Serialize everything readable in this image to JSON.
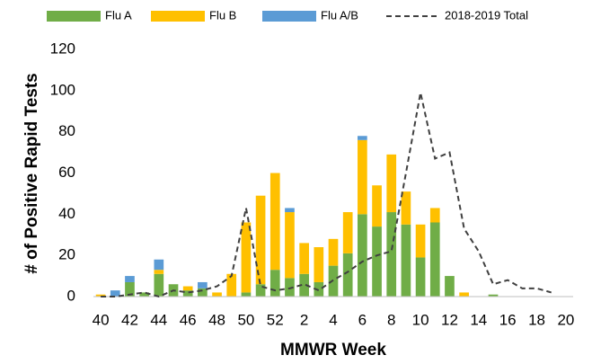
{
  "chart_data": {
    "type": "bar",
    "categories": [
      40,
      null,
      42,
      null,
      44,
      null,
      46,
      null,
      48,
      null,
      50,
      null,
      52,
      null,
      2,
      null,
      4,
      null,
      6,
      null,
      8,
      null,
      10,
      null,
      12,
      null,
      14,
      null,
      16,
      null,
      18,
      null,
      20
    ],
    "series": [
      {
        "name": "Flu A",
        "color": "#70ad47",
        "values": [
          0,
          0,
          7,
          2,
          11,
          6,
          3,
          4,
          0,
          0,
          2,
          6,
          13,
          9,
          11,
          7,
          15,
          21,
          40,
          34,
          41,
          35,
          19,
          36,
          10,
          0,
          0,
          1,
          0,
          0,
          0,
          0,
          0
        ]
      },
      {
        "name": "Flu B",
        "color": "#ffc000",
        "values": [
          1,
          0,
          0,
          0,
          2,
          0,
          2,
          0,
          2,
          11,
          34,
          43,
          47,
          32,
          15,
          17,
          13,
          20,
          36,
          20,
          28,
          16,
          16,
          7,
          0,
          2,
          0,
          0,
          0,
          0,
          0,
          0,
          0
        ]
      },
      {
        "name": "Flu A/B",
        "color": "#5b9bd5",
        "values": [
          0,
          3,
          3,
          0,
          5,
          0,
          0,
          3,
          0,
          0,
          0,
          0,
          0,
          2,
          0,
          0,
          0,
          0,
          2,
          0,
          0,
          0,
          0,
          0,
          0,
          0,
          0,
          0,
          0,
          0,
          0,
          0,
          0
        ]
      },
      {
        "name": "2018-2019 Total",
        "type": "line",
        "color": "#404040",
        "dashed": true,
        "values": [
          0,
          0,
          1,
          2,
          0,
          3,
          2,
          3,
          5,
          10,
          43,
          5,
          3,
          4,
          6,
          3,
          8,
          12,
          17,
          20,
          22,
          60,
          99,
          67,
          70,
          33,
          22,
          6,
          8,
          4,
          4,
          2,
          null
        ]
      }
    ],
    "stacked": true,
    "xlabel": "MMWR Week",
    "ylabel": "# of Positive Rapid Tests",
    "ylim": [
      0,
      120
    ],
    "yticks": [
      0,
      20,
      40,
      60,
      80,
      100,
      120
    ],
    "grid": false,
    "legend": "top"
  }
}
